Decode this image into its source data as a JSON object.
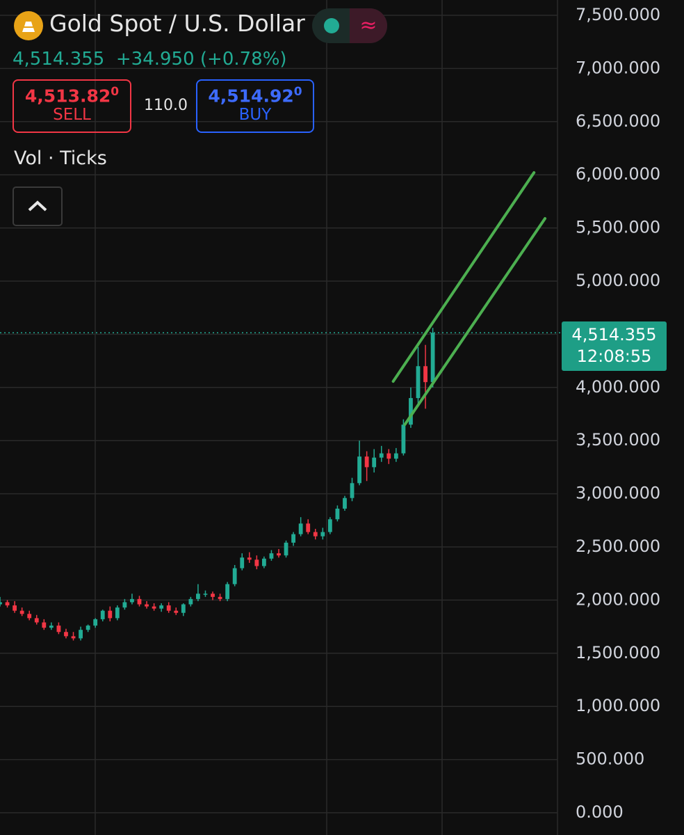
{
  "header": {
    "title": "Gold Spot / U.S. Dollar",
    "price": "4,514.355",
    "change": "+34.950",
    "change_pct": "(+0.78%)",
    "sell_price": "4,513.82",
    "sell_sup": "0",
    "sell_label": "SELL",
    "spread": "110.0",
    "buy_price": "4,514.92",
    "buy_sup": "0",
    "buy_label": "BUY",
    "indicator": "Vol · Ticks"
  },
  "chart_data": {
    "type": "candlestick",
    "up_color": "#22ab94",
    "down_color": "#f23645",
    "grid": true,
    "xlim": [
      0,
      76
    ],
    "ylim": [
      0,
      7500
    ],
    "yticks": [
      {
        "value": 0,
        "label": "0.000"
      },
      {
        "value": 500,
        "label": "500.000"
      },
      {
        "value": 1000,
        "label": "1,000.000"
      },
      {
        "value": 1500,
        "label": "1,500.000"
      },
      {
        "value": 2000,
        "label": "2,000.000"
      },
      {
        "value": 2500,
        "label": "2,500.000"
      },
      {
        "value": 3000,
        "label": "3,000.000"
      },
      {
        "value": 3500,
        "label": "3,500.000"
      },
      {
        "value": 4000,
        "label": "4,000.000"
      },
      {
        "value": 4500,
        "label": "4,500.000"
      },
      {
        "value": 5000,
        "label": "5,000.000"
      },
      {
        "value": 5500,
        "label": "5,500.000"
      },
      {
        "value": 6000,
        "label": "6,000.000"
      },
      {
        "value": 6500,
        "label": "6,500.000"
      },
      {
        "value": 7000,
        "label": "7,000.000"
      },
      {
        "value": 7500,
        "label": "7,500.000"
      }
    ],
    "open": [
      1960,
      1980,
      1950,
      1900,
      1870,
      1830,
      1790,
      1740,
      1760,
      1700,
      1660,
      1640,
      1720,
      1760,
      1820,
      1900,
      1830,
      1930,
      1980,
      2010,
      1960,
      1940,
      1920,
      1950,
      1900,
      1880,
      1960,
      2010,
      2060,
      2060,
      2030,
      2010,
      2150,
      2300,
      2400,
      2380,
      2320,
      2390,
      2440,
      2420,
      2540,
      2620,
      2720,
      2640,
      2600,
      2640,
      2760,
      2860,
      2960,
      3100,
      3350,
      3250,
      3340,
      3380,
      3330,
      3380,
      3650,
      3900,
      4200,
      4050
    ],
    "high": [
      2030,
      2000,
      1990,
      1930,
      1900,
      1860,
      1820,
      1790,
      1790,
      1730,
      1700,
      1750,
      1770,
      1830,
      1910,
      1940,
      1950,
      2010,
      2060,
      2040,
      1990,
      1970,
      1970,
      1980,
      1930,
      1970,
      2030,
      2150,
      2090,
      2080,
      2060,
      2170,
      2330,
      2440,
      2450,
      2420,
      2410,
      2470,
      2480,
      2560,
      2640,
      2780,
      2760,
      2670,
      2680,
      2780,
      2890,
      2980,
      3150,
      3500,
      3400,
      3420,
      3450,
      3420,
      3430,
      3700,
      4000,
      4380,
      4400,
      4560
    ],
    "low": [
      1940,
      1930,
      1880,
      1850,
      1810,
      1770,
      1720,
      1720,
      1680,
      1640,
      1620,
      1620,
      1700,
      1740,
      1800,
      1800,
      1810,
      1910,
      1960,
      1940,
      1920,
      1900,
      1890,
      1880,
      1860,
      1850,
      1940,
      1990,
      2030,
      2000,
      1990,
      1990,
      2130,
      2280,
      2350,
      2290,
      2300,
      2370,
      2400,
      2400,
      2510,
      2600,
      2620,
      2570,
      2570,
      2620,
      2740,
      2840,
      2930,
      3080,
      3120,
      3200,
      3300,
      3280,
      3300,
      3360,
      3620,
      3850,
      3800,
      4000
    ],
    "close": [
      1980,
      1950,
      1900,
      1870,
      1830,
      1790,
      1740,
      1760,
      1700,
      1660,
      1640,
      1720,
      1760,
      1820,
      1900,
      1830,
      1930,
      1980,
      2010,
      1960,
      1940,
      1920,
      1950,
      1900,
      1880,
      1960,
      2010,
      2060,
      2060,
      2030,
      2010,
      2150,
      2300,
      2400,
      2380,
      2320,
      2390,
      2440,
      2420,
      2540,
      2620,
      2720,
      2640,
      2600,
      2640,
      2760,
      2860,
      2960,
      3100,
      3350,
      3250,
      3340,
      3380,
      3330,
      3380,
      3650,
      3900,
      4200,
      4050,
      4514.355
    ],
    "last_price": {
      "value": 4514.355,
      "label": "4,514.355"
    },
    "last_time": "12:08:55",
    "trend_lines": [
      {
        "color": "#4caf50",
        "x": [
          53.6,
          72.8
        ],
        "y": [
          4057,
          6021
        ]
      },
      {
        "color": "#4caf50",
        "x": [
          55.2,
          74.3
        ],
        "y": [
          3652,
          5589
        ]
      }
    ]
  }
}
